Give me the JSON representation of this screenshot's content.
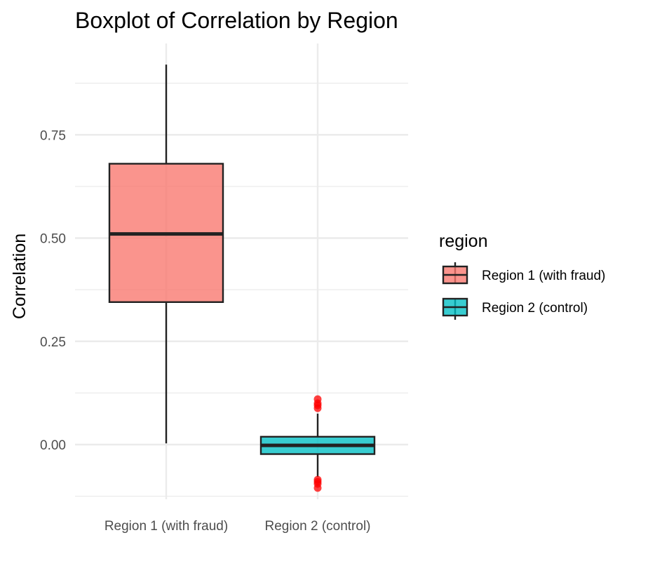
{
  "chart_data": {
    "type": "boxplot",
    "title": "Boxplot of Correlation by Region",
    "xlabel": "",
    "ylabel": "Correlation",
    "ylim": [
      -0.125,
      0.97
    ],
    "yticks": [
      0.0,
      0.25,
      0.5,
      0.75
    ],
    "ytick_labels": [
      "0.00",
      "0.25",
      "0.50",
      "0.75"
    ],
    "grid": true,
    "categories": [
      "Region 1 (with fraud)",
      "Region 2 (control)"
    ],
    "boxes": [
      {
        "category": "Region 1 (with fraud)",
        "whisker_low": 0.003,
        "q1": 0.345,
        "median": 0.51,
        "q3": 0.68,
        "whisker_high": 0.92,
        "outliers": [],
        "color": "#F8766D"
      },
      {
        "category": "Region 2 (control)",
        "whisker_low": -0.078,
        "q1": -0.023,
        "median": -0.002,
        "q3": 0.019,
        "whisker_high": 0.075,
        "outliers": [
          0.11,
          0.1,
          0.095,
          0.088,
          -0.085,
          -0.09,
          -0.095,
          -0.105
        ],
        "color": "#00BFC4"
      }
    ],
    "outlier_color": "#FF0000",
    "legend": {
      "title": "region",
      "position": "right",
      "items": [
        "Region 1 (with fraud)",
        "Region 2 (control)"
      ]
    }
  }
}
